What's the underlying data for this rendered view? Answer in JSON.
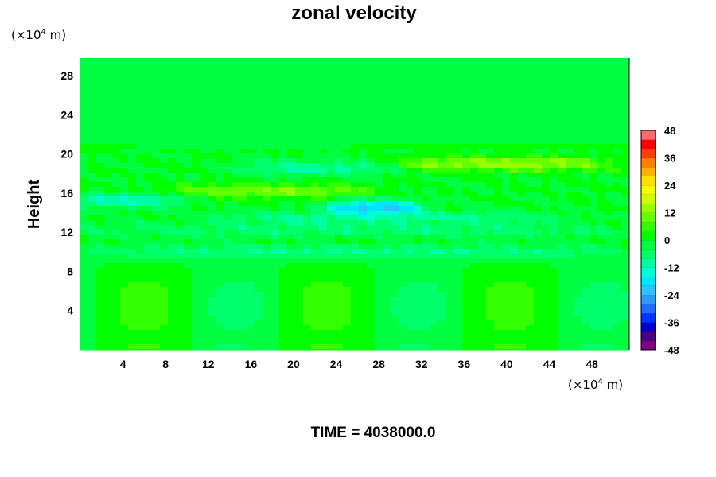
{
  "chart_data": {
    "type": "heatmap",
    "title": "zonal velocity",
    "ylabel": "Height",
    "xlabel": "",
    "x_unit": {
      "prefix": "(×10",
      "exp": "4",
      "suffix": " m)"
    },
    "y_unit": {
      "prefix": "(×10",
      "exp": "4",
      "suffix": " m)"
    },
    "xlim": [
      0,
      51.5
    ],
    "ylim": [
      0,
      29.8
    ],
    "x_ticks": [
      4,
      8,
      12,
      16,
      20,
      24,
      28,
      32,
      36,
      40,
      44,
      48
    ],
    "y_ticks": [
      4,
      8,
      12,
      16,
      20,
      24,
      28
    ],
    "colorbar": {
      "min": -48,
      "max": 48,
      "step": 4,
      "tick_labels": [
        48,
        36,
        24,
        12,
        0,
        -12,
        -24,
        -36,
        -48
      ],
      "colors": [
        "#800080",
        "#4b0082",
        "#0000cd",
        "#0033ff",
        "#1e6fff",
        "#2f9bff",
        "#2fc3ff",
        "#00e5ff",
        "#00ffd5",
        "#00ffa0",
        "#00ff6a",
        "#00ff40",
        "#00ff00",
        "#33ff00",
        "#66ff00",
        "#99ff00",
        "#ccff00",
        "#eeff00",
        "#ffe000",
        "#ffb000",
        "#ff8000",
        "#ff4000",
        "#ff0000",
        "#ff6a6a"
      ]
    },
    "field_features": [
      {
        "kind": "stratosphere",
        "y_range": [
          21,
          29.8
        ],
        "value": -1
      },
      {
        "kind": "band",
        "y": 19.0,
        "x_range": [
          31,
          48
        ],
        "value": 14
      },
      {
        "kind": "band",
        "y": 18.6,
        "x_range": [
          17,
          28
        ],
        "value": -10
      },
      {
        "kind": "band",
        "y": 16.2,
        "x_range": [
          10,
          26
        ],
        "value": 12
      },
      {
        "kind": "band",
        "y": 15.2,
        "x_range": [
          0,
          8
        ],
        "value": -12
      },
      {
        "kind": "band",
        "y": 14.6,
        "x_range": [
          25,
          30
        ],
        "value": -20
      },
      {
        "kind": "band",
        "y": 13.5,
        "x_range": [
          15,
          42
        ],
        "value": -9
      },
      {
        "kind": "band",
        "y": 12.2,
        "x_range": [
          0,
          51
        ],
        "value": -6
      },
      {
        "kind": "band",
        "y": 10.0,
        "x_range": [
          0,
          51
        ],
        "value": -8
      },
      {
        "kind": "troposphere_wave",
        "wavelength": 17.2,
        "amplitude": 8
      }
    ]
  },
  "footer": {
    "text": "TIME = 4038000.0"
  }
}
